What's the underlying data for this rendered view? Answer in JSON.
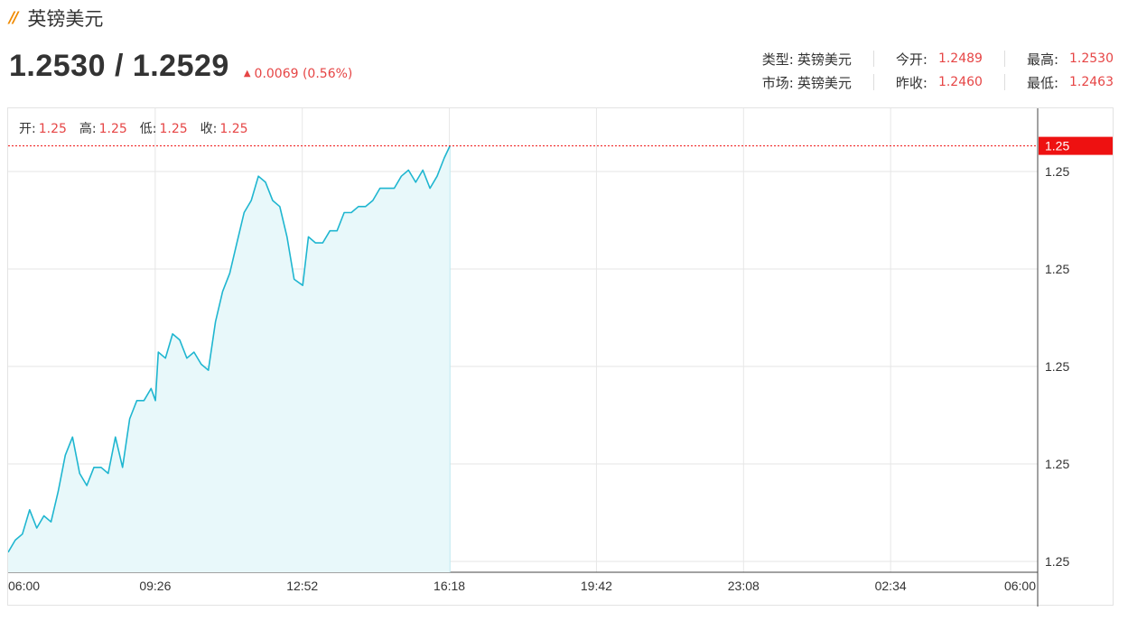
{
  "header": {
    "brand_mark": "//",
    "name": "英镑美元"
  },
  "quote": {
    "price": "1.2530 / 1.2529",
    "change": "0.0069 (0.56%)",
    "up_arrow": "up-arrow-icon"
  },
  "info": {
    "type_label": "类型:",
    "type_value": "英镑美元",
    "market_label": "市场:",
    "market_value": "英镑美元",
    "open_label": "今开:",
    "open_value": "1.2489",
    "prev_close_label": "昨收:",
    "prev_close_value": "1.2460",
    "high_label": "最高:",
    "high_value": "1.2530",
    "low_label": "最低:",
    "low_value": "1.2463"
  },
  "ohlc": {
    "open_label": "开:",
    "open_value": "1.25",
    "high_label": "高:",
    "high_value": "1.25",
    "low_label": "低:",
    "low_value": "1.25",
    "close_label": "收:",
    "close_value": "1.25"
  },
  "colors": {
    "line": "#1fb6d0",
    "fill": "#e8f8fa",
    "up": "#e64545",
    "price_tag": "#ee1111",
    "grid": "#e6e6e6"
  },
  "chart_data": {
    "type": "area",
    "x_tick_labels": [
      "06:00",
      "09:26",
      "12:52",
      "16:18",
      "19:42",
      "23:08",
      "02:34",
      "06:00"
    ],
    "y_tick_labels": [
      "1.25",
      "1.25",
      "1.25",
      "1.25",
      "1.25"
    ],
    "last_price_label": "1.25",
    "x_range": [
      "06:00",
      "06:00"
    ],
    "ylim": [
      1.246,
      1.2535
    ],
    "grid": true,
    "series": [
      {
        "x": [
          "06:00",
          "06:10",
          "06:20",
          "06:30",
          "06:40",
          "06:50",
          "07:00",
          "07:10",
          "07:20",
          "07:30",
          "07:40",
          "07:50",
          "08:00",
          "08:10",
          "08:20",
          "08:30",
          "08:40",
          "08:50",
          "09:00",
          "09:10",
          "09:20",
          "09:26",
          "09:30",
          "09:40",
          "09:50",
          "10:00",
          "10:10",
          "10:20",
          "10:30",
          "10:40",
          "10:50",
          "11:00",
          "11:10",
          "11:20",
          "11:30",
          "11:40",
          "11:50",
          "12:00",
          "12:10",
          "12:20",
          "12:30",
          "12:40",
          "12:52",
          "13:00",
          "13:10",
          "13:20",
          "13:30",
          "13:40",
          "13:50",
          "14:00",
          "14:10",
          "14:20",
          "14:30",
          "14:40",
          "14:50",
          "15:00",
          "15:10",
          "15:20",
          "15:30",
          "15:40",
          "15:50",
          "16:00",
          "16:10",
          "16:18"
        ],
        "values": [
          1.2463,
          1.2465,
          1.2466,
          1.247,
          1.2467,
          1.2469,
          1.2468,
          1.2473,
          1.2479,
          1.2482,
          1.2476,
          1.2474,
          1.2477,
          1.2477,
          1.2476,
          1.2482,
          1.2477,
          1.2485,
          1.2488,
          1.2488,
          1.249,
          1.2488,
          1.2496,
          1.2495,
          1.2499,
          1.2498,
          1.2495,
          1.2496,
          1.2494,
          1.2493,
          1.2501,
          1.2506,
          1.2509,
          1.2514,
          1.2519,
          1.2521,
          1.2525,
          1.2524,
          1.2521,
          1.252,
          1.2515,
          1.2508,
          1.2507,
          1.2515,
          1.2514,
          1.2514,
          1.2516,
          1.2516,
          1.2519,
          1.2519,
          1.252,
          1.252,
          1.2521,
          1.2523,
          1.2523,
          1.2523,
          1.2525,
          1.2526,
          1.2524,
          1.2526,
          1.2523,
          1.2525,
          1.2528,
          1.253
        ]
      }
    ]
  }
}
